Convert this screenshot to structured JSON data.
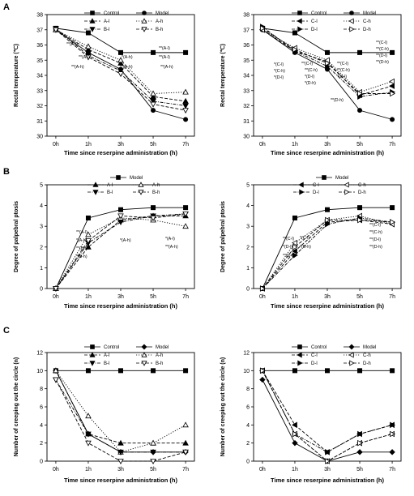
{
  "panel_labels": [
    "A",
    "B",
    "C"
  ],
  "chart_data": [
    {
      "type": "line",
      "panel": "A",
      "ylabel": "Rectal temperature (℃)",
      "xlabel": "Time since reserpine administration (h)",
      "categories": [
        "0h",
        "1h",
        "3h",
        "5h",
        "7h"
      ],
      "ylim": [
        30,
        38
      ],
      "yticks": [
        30,
        31,
        32,
        33,
        34,
        35,
        36,
        37,
        38
      ],
      "series": [
        {
          "name": "Control",
          "marker": "square",
          "values": [
            37.1,
            36.8,
            35.5,
            35.5,
            35.5
          ],
          "dash": "solid"
        },
        {
          "name": "Model",
          "marker": "circle",
          "values": [
            37.0,
            35.5,
            34.4,
            31.7,
            31.1
          ],
          "dash": "solid"
        },
        {
          "name": "A-l",
          "marker": "tri-up",
          "values": [
            37.0,
            35.7,
            34.8,
            32.6,
            32.3
          ],
          "dash": "dash"
        },
        {
          "name": "A-h",
          "marker": "tri-up-open",
          "values": [
            37.0,
            35.9,
            35.0,
            32.8,
            32.9
          ],
          "dash": "dot"
        },
        {
          "name": "B-l",
          "marker": "tri-down",
          "values": [
            37.1,
            35.3,
            34.3,
            32.3,
            32.0
          ],
          "dash": "dashdot"
        },
        {
          "name": "B-h",
          "marker": "tri-down-open",
          "values": [
            37.0,
            35.2,
            34.1,
            32.1,
            31.7
          ],
          "dash": "dash"
        }
      ],
      "annotations": [
        "**(A-l)",
        "**(A-l)",
        "**(A-h)",
        "*(A-h)",
        "**(A-h)",
        "**(A-l)",
        "**(A-h)",
        "**(A-l)"
      ]
    },
    {
      "type": "line",
      "panel": "A",
      "ylabel": "Rectal temperature (℃)",
      "xlabel": "Time since reserpine administration (h)",
      "categories": [
        "0h",
        "1h",
        "3h",
        "5h",
        "7h"
      ],
      "ylim": [
        30,
        38
      ],
      "yticks": [
        30,
        31,
        32,
        33,
        34,
        35,
        36,
        37,
        38
      ],
      "series": [
        {
          "name": "Control",
          "marker": "square",
          "values": [
            37.1,
            36.8,
            35.5,
            35.5,
            35.5
          ],
          "dash": "solid"
        },
        {
          "name": "Model",
          "marker": "circle",
          "values": [
            37.0,
            35.5,
            34.4,
            31.7,
            31.1
          ],
          "dash": "solid"
        },
        {
          "name": "C-l",
          "marker": "tri-left",
          "values": [
            37.0,
            35.6,
            34.9,
            32.7,
            33.3
          ],
          "dash": "dash"
        },
        {
          "name": "C-h",
          "marker": "tri-left-open",
          "values": [
            37.0,
            35.8,
            35.0,
            32.9,
            33.6
          ],
          "dash": "dot"
        },
        {
          "name": "D-l",
          "marker": "tri-right",
          "values": [
            37.2,
            35.6,
            34.6,
            32.6,
            32.9
          ],
          "dash": "dashdot"
        },
        {
          "name": "D-h",
          "marker": "tri-right-open",
          "values": [
            37.1,
            35.7,
            34.8,
            32.8,
            32.8
          ],
          "dash": "dash"
        }
      ],
      "annotations": [
        "*(C-l)",
        "*(C-h)",
        "*(D-l)",
        "**(C-l)",
        "**(C-h)",
        "*(D-l)",
        "*(D-h)",
        "**(C-l)",
        "**(C-h)",
        "*(D-l)",
        "**(D-h)",
        "**(C-l)",
        "**(C-h)",
        "**(D-l)",
        "**(D-h)"
      ]
    },
    {
      "type": "line",
      "panel": "B",
      "ylabel": "Degree of palpebral ptosis",
      "xlabel": "Time since reserpine administration (h)",
      "categories": [
        "0h",
        "1h",
        "3h",
        "5h",
        "7h"
      ],
      "ylim": [
        0,
        5
      ],
      "yticks": [
        0,
        1,
        2,
        3,
        4,
        5
      ],
      "series": [
        {
          "name": "Model",
          "marker": "square",
          "values": [
            0,
            3.4,
            3.8,
            3.9,
            3.9
          ],
          "dash": "solid"
        },
        {
          "name": "A-l",
          "marker": "tri-up",
          "values": [
            0,
            2.0,
            3.3,
            3.5,
            3.5
          ],
          "dash": "dash"
        },
        {
          "name": "A-h",
          "marker": "tri-up-open",
          "values": [
            0,
            2.6,
            3.4,
            3.3,
            3.0
          ],
          "dash": "dot"
        },
        {
          "name": "B-l",
          "marker": "tri-down",
          "values": [
            0,
            2.2,
            3.2,
            3.5,
            3.6
          ],
          "dash": "dashdot"
        },
        {
          "name": "B-h",
          "marker": "tri-down-open",
          "values": [
            0,
            2.3,
            3.5,
            3.4,
            3.6
          ],
          "dash": "dash"
        }
      ],
      "annotations": [
        "**(A-l)",
        "*(A-h)",
        "**(B-l)",
        "*(B-h)",
        "*(A-h)",
        "*(A-l)",
        "**(A-h)"
      ]
    },
    {
      "type": "line",
      "panel": "B",
      "ylabel": "Degree of palpebral ptosis",
      "xlabel": "Time since reserpine administration (h)",
      "categories": [
        "0h",
        "1h",
        "3h",
        "5h",
        "7h"
      ],
      "ylim": [
        0,
        5
      ],
      "yticks": [
        0,
        1,
        2,
        3,
        4,
        5
      ],
      "series": [
        {
          "name": "Model",
          "marker": "square",
          "values": [
            0,
            3.4,
            3.8,
            3.9,
            3.9
          ],
          "dash": "solid"
        },
        {
          "name": "C-l",
          "marker": "tri-left",
          "values": [
            0,
            1.8,
            3.2,
            3.3,
            3.1
          ],
          "dash": "dash"
        },
        {
          "name": "C-h",
          "marker": "tri-left-open",
          "values": [
            0,
            2.2,
            3.3,
            3.5,
            3.1
          ],
          "dash": "dot"
        },
        {
          "name": "D-l",
          "marker": "tri-right",
          "values": [
            0,
            1.6,
            3.1,
            3.4,
            3.2
          ],
          "dash": "dashdot"
        },
        {
          "name": "D-h",
          "marker": "tri-right-open",
          "values": [
            0,
            2.0,
            3.3,
            3.3,
            3.2
          ],
          "dash": "dash"
        }
      ],
      "annotations": [
        "**(C-l)",
        "*(D-l)",
        "**(D-h)",
        "*(C-l)",
        "*(D-h)",
        "**(C-l)",
        "**(C-h)",
        "**(D-l)",
        "**(D-h)"
      ]
    },
    {
      "type": "line",
      "panel": "C",
      "ylabel": "Number of creeping out the circle (n)",
      "xlabel": "Time since reserpine administration (h)",
      "categories": [
        "0h",
        "1h",
        "3h",
        "5h",
        "7h"
      ],
      "ylim": [
        0,
        12
      ],
      "yticks": [
        0,
        2,
        4,
        6,
        8,
        10,
        12
      ],
      "series": [
        {
          "name": "Control",
          "marker": "square",
          "values": [
            10,
            10,
            10,
            10,
            10
          ],
          "dash": "solid"
        },
        {
          "name": "Model",
          "marker": "diamond",
          "values": [
            10,
            3,
            1,
            1,
            1
          ],
          "dash": "solid"
        },
        {
          "name": "A-l",
          "marker": "tri-up",
          "values": [
            10,
            3,
            2,
            2,
            2
          ],
          "dash": "dash"
        },
        {
          "name": "A-h",
          "marker": "tri-up-open",
          "values": [
            10,
            5,
            1,
            2,
            4
          ],
          "dash": "dot"
        },
        {
          "name": "B-l",
          "marker": "tri-down",
          "values": [
            9,
            3,
            1,
            1,
            1
          ],
          "dash": "dashdot"
        },
        {
          "name": "B-h",
          "marker": "tri-down-open",
          "values": [
            9,
            2,
            0,
            0,
            1
          ],
          "dash": "dash"
        }
      ],
      "annotations": []
    },
    {
      "type": "line",
      "panel": "C",
      "ylabel": "Number of creeping out the circle (n)",
      "xlabel": "Time since reserpine administration (h)",
      "categories": [
        "0h",
        "1h",
        "3h",
        "5h",
        "7h"
      ],
      "ylim": [
        0,
        12
      ],
      "yticks": [
        0,
        2,
        4,
        6,
        8,
        10,
        12
      ],
      "series": [
        {
          "name": "Control",
          "marker": "square",
          "values": [
            10,
            10,
            10,
            10,
            10
          ],
          "dash": "solid"
        },
        {
          "name": "Model",
          "marker": "diamond",
          "values": [
            9,
            2,
            0,
            1,
            1
          ],
          "dash": "solid"
        },
        {
          "name": "C-l",
          "marker": "tri-left",
          "values": [
            10,
            4,
            1,
            3,
            4
          ],
          "dash": "dash"
        },
        {
          "name": "C-h",
          "marker": "tri-left-open",
          "values": [
            10,
            3,
            0,
            2,
            3
          ],
          "dash": "dot"
        },
        {
          "name": "D-l",
          "marker": "tri-right",
          "values": [
            10,
            3,
            1,
            3,
            4
          ],
          "dash": "dashdot"
        },
        {
          "name": "D-h",
          "marker": "tri-right-open",
          "values": [
            10,
            3,
            0,
            2,
            3
          ],
          "dash": "dash"
        }
      ],
      "annotations": []
    }
  ]
}
